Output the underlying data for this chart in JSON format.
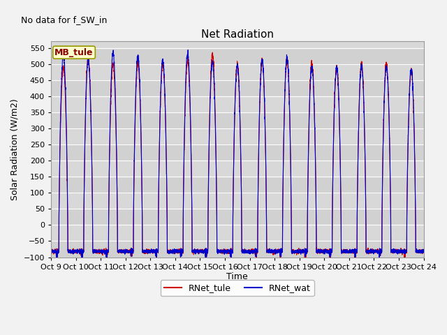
{
  "title": "Net Radiation",
  "top_left_text": "No data for f_SW_in",
  "ylabel": "Solar Radiation (W/m2)",
  "xlabel": "Time",
  "ylim": [
    -100,
    570
  ],
  "yticks": [
    -100,
    -50,
    0,
    50,
    100,
    150,
    200,
    250,
    300,
    350,
    400,
    450,
    500,
    550
  ],
  "xtick_labels": [
    "Oct 9",
    "Oct 10",
    "Oct 11",
    "Oct 12",
    "Oct 13",
    "Oct 14",
    "Oct 15",
    "Oct 16",
    "Oct 17",
    "Oct 18",
    "Oct 19",
    "Oct 20",
    "Oct 21",
    "Oct 22",
    "Oct 23",
    "Oct 24"
  ],
  "color_tule": "#cc0000",
  "color_wat": "#0000cc",
  "legend_tule": "RNet_tule",
  "legend_wat": "RNet_wat",
  "mb_label": "MB_tule",
  "bg_color": "#d8d8d8",
  "grid_color": "#e8e8e8",
  "n_days": 15,
  "peak_values_tule": [
    490,
    522,
    500,
    500,
    500,
    510,
    530,
    495,
    510,
    515,
    503,
    490,
    502,
    500,
    480
  ],
  "peak_values_wat": [
    527,
    510,
    534,
    523,
    510,
    532,
    505,
    497,
    515,
    520,
    490,
    490,
    494,
    492,
    483
  ],
  "night_base": -82,
  "figsize": [
    6.4,
    4.8
  ],
  "dpi": 100
}
